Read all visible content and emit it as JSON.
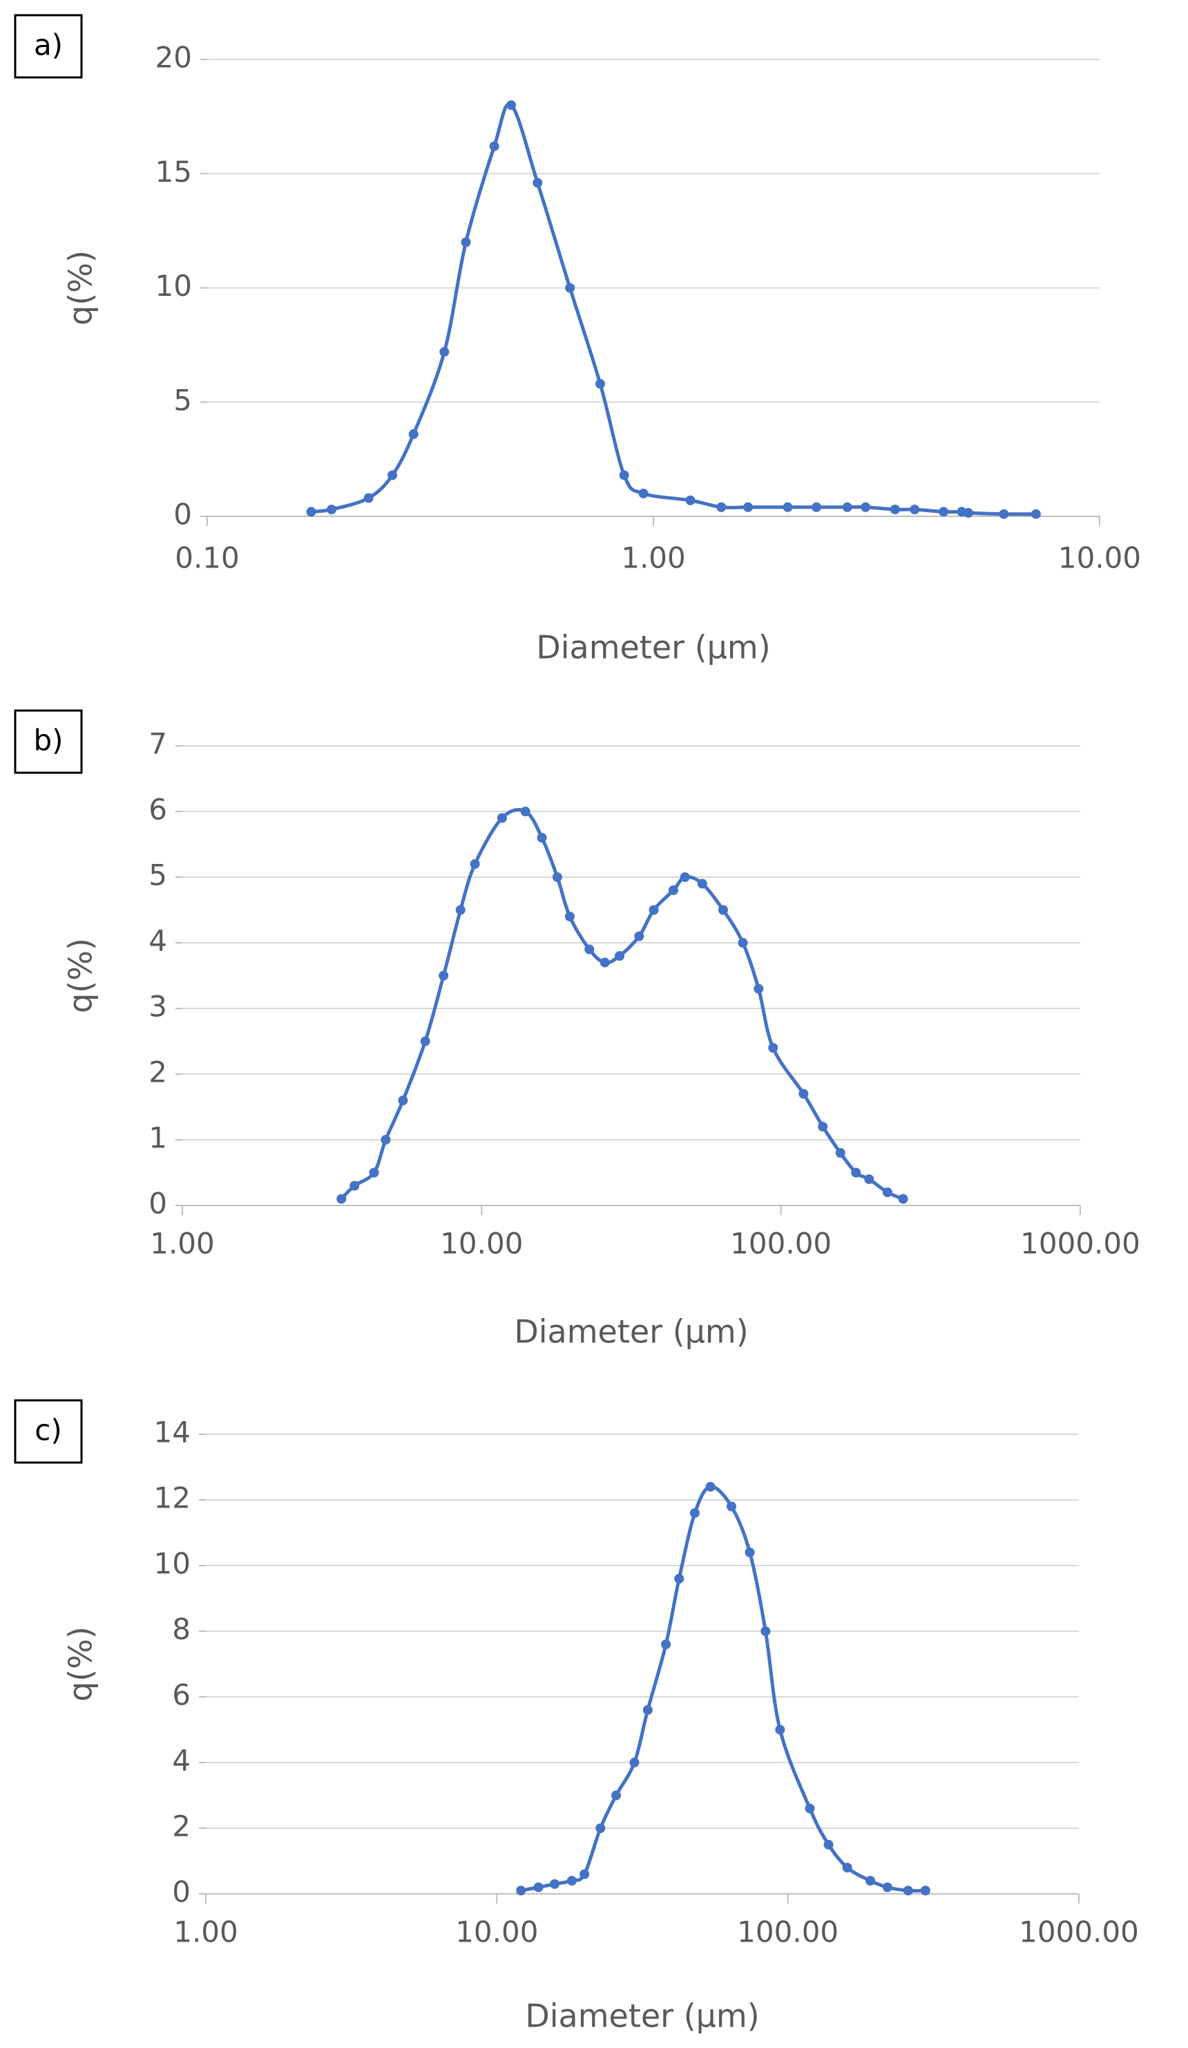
{
  "chart_data": [
    {
      "type": "line",
      "panel_label": "a)",
      "x_label": "Diameter (μm)",
      "y_label": "q(%)",
      "log_x": true,
      "grid": true,
      "color": "#4472c4",
      "xlim": [
        0.1,
        10
      ],
      "xticks": [
        {
          "value": 0.1,
          "label": "0.10"
        },
        {
          "value": 1,
          "label": "1.00"
        },
        {
          "value": 10,
          "label": "10.00"
        }
      ],
      "ylim": [
        0,
        20
      ],
      "yticks": [
        0,
        5,
        10,
        15,
        20
      ],
      "x": [
        0.171,
        0.19,
        0.23,
        0.26,
        0.29,
        0.34,
        0.38,
        0.44,
        0.48,
        0.55,
        0.65,
        0.76,
        0.86,
        0.95,
        1.21,
        1.42,
        1.63,
        2.0,
        2.32,
        2.72,
        2.99,
        3.48,
        3.85,
        4.47,
        4.91,
        5.08,
        6.1,
        7.2
      ],
      "values": [
        0.2,
        0.3,
        0.8,
        1.8,
        3.6,
        7.2,
        12,
        16.2,
        18,
        14.6,
        10,
        5.8,
        1.8,
        1.0,
        0.7,
        0.4,
        0.4,
        0.4,
        0.4,
        0.4,
        0.4,
        0.3,
        0.3,
        0.2,
        0.2,
        0.15,
        0.1,
        0.1
      ]
    },
    {
      "type": "line",
      "panel_label": "b)",
      "x_label": "Diameter (μm)",
      "y_label": "q(%)",
      "log_x": true,
      "grid": true,
      "color": "#4472c4",
      "xlim": [
        1,
        1000
      ],
      "xticks": [
        {
          "value": 1,
          "label": "1.00"
        },
        {
          "value": 10,
          "label": "10.00"
        },
        {
          "value": 100,
          "label": "100.00"
        },
        {
          "value": 1000,
          "label": "1000.00"
        }
      ],
      "ylim": [
        0,
        7
      ],
      "yticks": [
        0,
        1,
        2,
        3,
        4,
        5,
        6,
        7
      ],
      "x": [
        3.4,
        3.76,
        4.37,
        4.78,
        5.46,
        6.48,
        7.46,
        8.5,
        9.5,
        11.7,
        14,
        15.9,
        17.9,
        19.7,
        22.9,
        25.8,
        28.9,
        33.6,
        37.6,
        43.7,
        47.8,
        54.6,
        64.1,
        74.6,
        84.2,
        94.1,
        119,
        138,
        158,
        178,
        197,
        227,
        256
      ],
      "values": [
        0.1,
        0.3,
        0.5,
        1.0,
        1.6,
        2.5,
        3.5,
        4.5,
        5.2,
        5.9,
        6.0,
        5.6,
        5.0,
        4.4,
        3.9,
        3.7,
        3.8,
        4.1,
        4.5,
        4.8,
        5.0,
        4.9,
        4.5,
        4.0,
        3.3,
        2.4,
        1.7,
        1.2,
        0.8,
        0.5,
        0.4,
        0.2,
        0.1
      ]
    },
    {
      "type": "line",
      "panel_label": "c)",
      "x_label": "Diameter (μm)",
      "y_label": "q(%)",
      "log_x": true,
      "grid": true,
      "color": "#4472c4",
      "xlim": [
        1,
        1000
      ],
      "xticks": [
        {
          "value": 1,
          "label": "1.00"
        },
        {
          "value": 10,
          "label": "10.00"
        },
        {
          "value": 100,
          "label": "100.00"
        },
        {
          "value": 1000,
          "label": "1000.00"
        }
      ],
      "ylim": [
        0,
        14
      ],
      "yticks": [
        0,
        2,
        4,
        6,
        8,
        10,
        12,
        14
      ],
      "x": [
        12.1,
        13.9,
        15.8,
        18.1,
        20,
        22.7,
        25.7,
        29.7,
        33,
        38.1,
        42.3,
        47.9,
        54.2,
        64,
        74,
        83.8,
        94,
        119,
        138,
        160,
        192,
        220,
        259,
        297
      ],
      "values": [
        0.1,
        0.2,
        0.3,
        0.4,
        0.6,
        2.0,
        3.0,
        4.0,
        5.6,
        7.6,
        9.6,
        11.6,
        12.4,
        11.8,
        10.4,
        8.0,
        5.0,
        2.6,
        1.5,
        0.8,
        0.4,
        0.2,
        0.1,
        0.1
      ]
    }
  ]
}
